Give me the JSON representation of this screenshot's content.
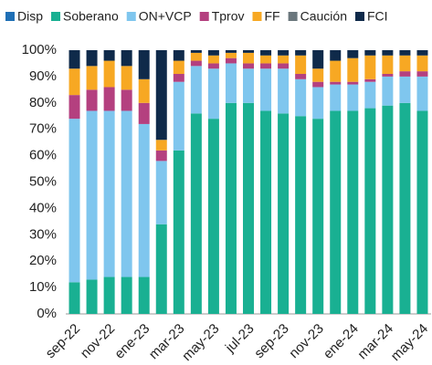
{
  "chart_data": {
    "type": "stacked_bar",
    "categories": [
      "sep-22",
      null,
      "nov-22",
      null,
      "ene-23",
      null,
      "mar-23",
      null,
      "may-23",
      null,
      "jul-23",
      null,
      "sep-23",
      null,
      "nov-23",
      null,
      "ene-24",
      null,
      "mar-24",
      null,
      "may-24"
    ],
    "series": [
      {
        "name": "Disp",
        "color": "#1f6fb5",
        "values": [
          0,
          0,
          0,
          0,
          0,
          0,
          0,
          0,
          0,
          0,
          0,
          0,
          0,
          0,
          0,
          0,
          0,
          0,
          0,
          0,
          0
        ]
      },
      {
        "name": "Soberano",
        "color": "#19b092",
        "values": [
          12,
          13,
          14,
          14,
          14,
          34,
          62,
          76,
          74,
          80,
          80,
          77,
          76,
          75,
          74,
          77,
          77,
          78,
          79,
          80,
          77
        ]
      },
      {
        "name": "ON+VCP",
        "color": "#7fc6ee",
        "values": [
          62,
          64,
          63,
          63,
          58,
          24,
          26,
          18,
          19,
          15,
          13,
          16,
          17,
          14,
          12,
          10,
          10,
          10,
          11,
          10,
          13
        ]
      },
      {
        "name": "Tprov",
        "color": "#b4407f",
        "values": [
          9,
          8,
          9,
          8,
          8,
          4,
          3,
          2,
          2,
          2,
          2,
          2,
          2,
          2,
          2,
          1,
          1,
          1,
          1,
          2,
          2
        ]
      },
      {
        "name": "FF",
        "color": "#f7a823",
        "values": [
          10,
          9,
          10,
          9,
          9,
          4,
          5,
          3,
          3,
          2,
          4,
          3,
          3,
          7,
          5,
          8,
          9,
          9,
          7,
          6,
          6
        ]
      },
      {
        "name": "Caución",
        "color": "#6b777d",
        "values": [
          0,
          0,
          0,
          0,
          0,
          0,
          0,
          0,
          0,
          0,
          0,
          0,
          0,
          0,
          0,
          0,
          0,
          0,
          0,
          0,
          0
        ]
      },
      {
        "name": "FCI",
        "color": "#0f2a4a",
        "values": [
          7,
          6,
          4,
          6,
          11,
          34,
          4,
          1,
          2,
          1,
          1,
          2,
          2,
          2,
          7,
          4,
          3,
          2,
          2,
          2,
          2
        ]
      }
    ],
    "ylim": [
      0,
      100
    ],
    "yticks": [
      {
        "value": 0,
        "label": "0%"
      },
      {
        "value": 10,
        "label": "10%"
      },
      {
        "value": 20,
        "label": "20%"
      },
      {
        "value": 30,
        "label": "30%"
      },
      {
        "value": 40,
        "label": "40%"
      },
      {
        "value": 50,
        "label": "50%"
      },
      {
        "value": 60,
        "label": "60%"
      },
      {
        "value": 70,
        "label": "70%"
      },
      {
        "value": 80,
        "label": "80%"
      },
      {
        "value": 90,
        "label": "90%"
      },
      {
        "value": 100,
        "label": "100%"
      }
    ],
    "grid": false,
    "legend": "top"
  }
}
